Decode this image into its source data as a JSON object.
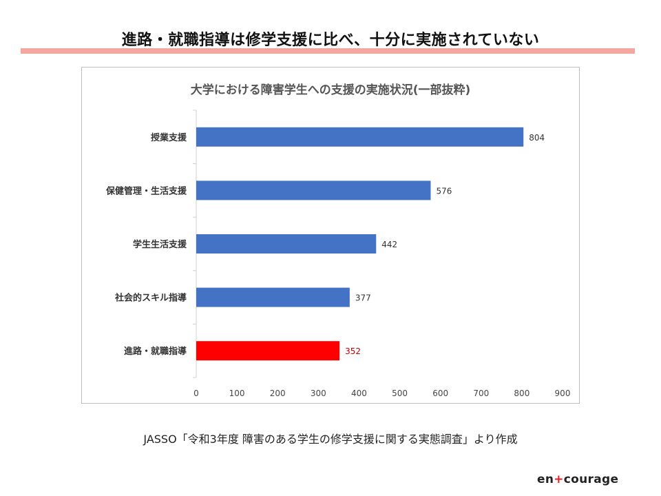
{
  "header": {
    "title": "進路・就職指導は修学支援に比べ、十分に実施されていない"
  },
  "chart_data": {
    "type": "bar",
    "orientation": "horizontal",
    "title": "大学における障害学生への支援の実施状況(一部抜粋)",
    "categories": [
      "授業支援",
      "保健管理・生活支援",
      "学生生活支援",
      "社会的スキル指導",
      "進路・就職指導"
    ],
    "values": [
      804,
      576,
      442,
      377,
      352
    ],
    "colors": [
      "#4472c4",
      "#4472c4",
      "#4472c4",
      "#4472c4",
      "#ff0000"
    ],
    "label_colors": [
      "#333333",
      "#333333",
      "#333333",
      "#333333",
      "#c00000"
    ],
    "xlim": [
      0,
      900
    ],
    "xticks": [
      0,
      100,
      200,
      300,
      400,
      500,
      600,
      700,
      800,
      900
    ],
    "xlabel": "",
    "ylabel": "",
    "grid": false,
    "legend": "none"
  },
  "footer": {
    "source": "JASSO「令和3年度 障害のある学生の修学支援に関する実態調査」より作成",
    "logo_left": "en",
    "logo_plus": "+",
    "logo_right": "courage"
  }
}
